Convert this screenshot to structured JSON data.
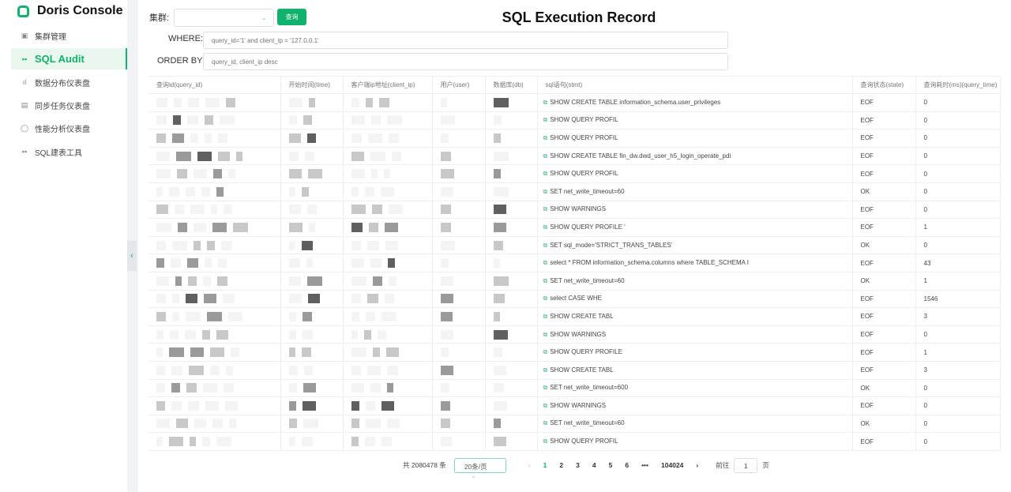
{
  "app": {
    "title": "Doris Console"
  },
  "sidebar": {
    "items": [
      {
        "label": "集群管理",
        "icon": "cluster-icon"
      },
      {
        "label": "SQL Audit",
        "icon": "grid-icon",
        "active": true
      },
      {
        "label": "数据分布仪表盘",
        "icon": "bar-chart-icon"
      },
      {
        "label": "同步任务仪表盘",
        "icon": "document-icon"
      },
      {
        "label": "性能分析仪表盘",
        "icon": "chip-icon"
      },
      {
        "label": "SQL建表工具",
        "icon": "grid-icon"
      }
    ]
  },
  "filters": {
    "cluster_label": "集群:",
    "query_button": "查询",
    "where_label": "WHERE:",
    "where_placeholder": "query_id='1' and client_ip = '127.0.0.1'",
    "orderby_label": "ORDER BY:",
    "orderby_placeholder": "query_id, client_ip desc"
  },
  "page_title": "SQL Execution Record",
  "table": {
    "columns": [
      "查询id(query_id)",
      "开始时间(time)",
      "客户端ip地址(client_ip)",
      "用户(user)",
      "数据库(db)",
      "sql语句(stmt)",
      "查询状态(state)",
      "查询耗时(ms)(query_time)"
    ],
    "rows": [
      {
        "stmt": "SHOW CREATE TABLE information_schema.user_privileges",
        "state": "EOF",
        "query_time": "0"
      },
      {
        "stmt": "SHOW QUERY PROFIL",
        "state": "EOF",
        "query_time": "0"
      },
      {
        "stmt": "SHOW QUERY PROFIL",
        "state": "EOF",
        "query_time": "0"
      },
      {
        "stmt": "SHOW CREATE TABLE fin_dw.dwd_user_h5_login_operate_pdi",
        "state": "EOF",
        "query_time": "0"
      },
      {
        "stmt": "SHOW QUERY PROFIL",
        "state": "EOF",
        "query_time": "0"
      },
      {
        "stmt": "SET net_write_timeout=60",
        "state": "OK",
        "query_time": "0"
      },
      {
        "stmt": "SHOW WARNINGS",
        "state": "EOF",
        "query_time": "0"
      },
      {
        "stmt": "SHOW QUERY PROFILE '",
        "state": "EOF",
        "query_time": "1"
      },
      {
        "stmt": "SET sql_mode='STRICT_TRANS_TABLES'",
        "state": "OK",
        "query_time": "0"
      },
      {
        "stmt": "select * FROM information_schema.columns where TABLE_SCHEMA I",
        "state": "EOF",
        "query_time": "43"
      },
      {
        "stmt": "SET net_write_timeout=60",
        "state": "OK",
        "query_time": "1"
      },
      {
        "stmt": "select CASE WHE",
        "state": "EOF",
        "query_time": "1546"
      },
      {
        "stmt": "SHOW CREATE TABL",
        "state": "EOF",
        "query_time": "3"
      },
      {
        "stmt": "SHOW WARNINGS",
        "state": "EOF",
        "query_time": "0"
      },
      {
        "stmt": "SHOW QUERY PROFILE",
        "state": "EOF",
        "query_time": "1"
      },
      {
        "stmt": "SHOW CREATE TABL",
        "state": "EOF",
        "query_time": "3"
      },
      {
        "stmt": "SET net_write_timeout=600",
        "state": "OK",
        "query_time": "0"
      },
      {
        "stmt": "SHOW WARNINGS",
        "state": "EOF",
        "query_time": "0"
      },
      {
        "stmt": "SET net_write_timeout=60",
        "state": "OK",
        "query_time": "0"
      },
      {
        "stmt": "SHOW QUERY PROFIL",
        "state": "EOF",
        "query_time": "0"
      }
    ]
  },
  "pagination": {
    "total": "共 2080478 条",
    "page_size": "20条/页",
    "pages": [
      "1",
      "2",
      "3",
      "4",
      "5",
      "6"
    ],
    "ellipsis": "•••",
    "last_page": "104024",
    "current": "1",
    "goto_label": "前往",
    "goto_value": "1",
    "page_suffix": "页"
  },
  "colors": {
    "accent": "#0fb36b"
  }
}
